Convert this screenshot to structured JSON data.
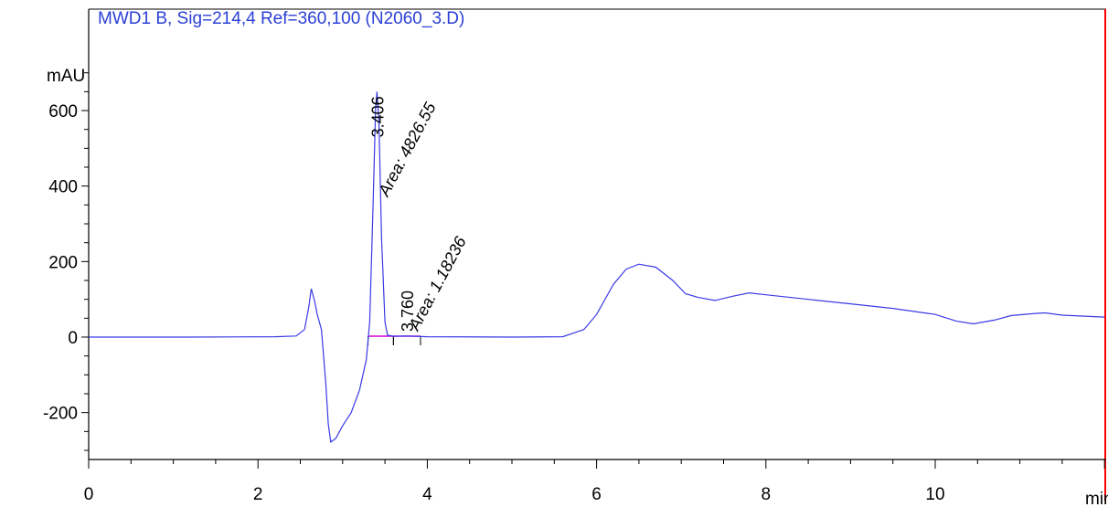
{
  "chart_data": {
    "type": "line",
    "title": "MWD1 B, Sig=214,4 Ref=360,100 (N2060_3.D)",
    "ylabel": "mAU",
    "xlabel": "min",
    "xlim": [
      0,
      12
    ],
    "ylim": [
      -320,
      730
    ],
    "x_ticks": [
      "0",
      "2",
      "4",
      "6",
      "8",
      "10"
    ],
    "y_ticks": [
      "600",
      "400",
      "200",
      "0",
      "-200"
    ],
    "colors": {
      "trace": "#3a3ae6",
      "baseline": "#d400d4",
      "frame": "#ff0000",
      "axis": "#000000"
    },
    "series": [
      {
        "points": [
          [
            0,
            0
          ],
          [
            1.2,
            0
          ],
          [
            2.2,
            1
          ],
          [
            2.45,
            3
          ],
          [
            2.55,
            20
          ],
          [
            2.6,
            80
          ],
          [
            2.63,
            128
          ],
          [
            2.67,
            95
          ],
          [
            2.7,
            60
          ],
          [
            2.75,
            20
          ],
          [
            2.8,
            -120
          ],
          [
            2.83,
            -230
          ],
          [
            2.86,
            -278
          ],
          [
            2.92,
            -268
          ],
          [
            3.0,
            -235
          ],
          [
            3.1,
            -200
          ],
          [
            3.2,
            -140
          ],
          [
            3.28,
            -60
          ],
          [
            3.32,
            40
          ],
          [
            3.36,
            350
          ],
          [
            3.39,
            610
          ],
          [
            3.406,
            650
          ],
          [
            3.43,
            560
          ],
          [
            3.46,
            260
          ],
          [
            3.5,
            40
          ],
          [
            3.53,
            5
          ],
          [
            3.6,
            2
          ],
          [
            3.76,
            3
          ],
          [
            4.0,
            1
          ],
          [
            5.0,
            0
          ],
          [
            5.6,
            1
          ],
          [
            5.85,
            20
          ],
          [
            6.0,
            60
          ],
          [
            6.2,
            140
          ],
          [
            6.35,
            180
          ],
          [
            6.5,
            193
          ],
          [
            6.7,
            185
          ],
          [
            6.9,
            150
          ],
          [
            7.05,
            115
          ],
          [
            7.2,
            105
          ],
          [
            7.4,
            97
          ],
          [
            7.6,
            108
          ],
          [
            7.8,
            117
          ],
          [
            8.0,
            112
          ],
          [
            8.5,
            100
          ],
          [
            9.0,
            88
          ],
          [
            9.5,
            76
          ],
          [
            10.0,
            60
          ],
          [
            10.25,
            42
          ],
          [
            10.45,
            35
          ],
          [
            10.7,
            45
          ],
          [
            10.9,
            57
          ],
          [
            11.2,
            63
          ],
          [
            11.3,
            64
          ],
          [
            11.5,
            58
          ],
          [
            12.0,
            53
          ]
        ]
      }
    ],
    "peaks": [
      {
        "rt_label": "3.406",
        "area_label": "Area: 4826.55",
        "x": 3.406,
        "y": 650,
        "start": 3.3,
        "end": 3.6
      },
      {
        "rt_label": "3.760",
        "area_label": "Area: 1.18236",
        "x": 3.76,
        "y": 3,
        "start": 3.6,
        "end": 3.92
      }
    ]
  }
}
